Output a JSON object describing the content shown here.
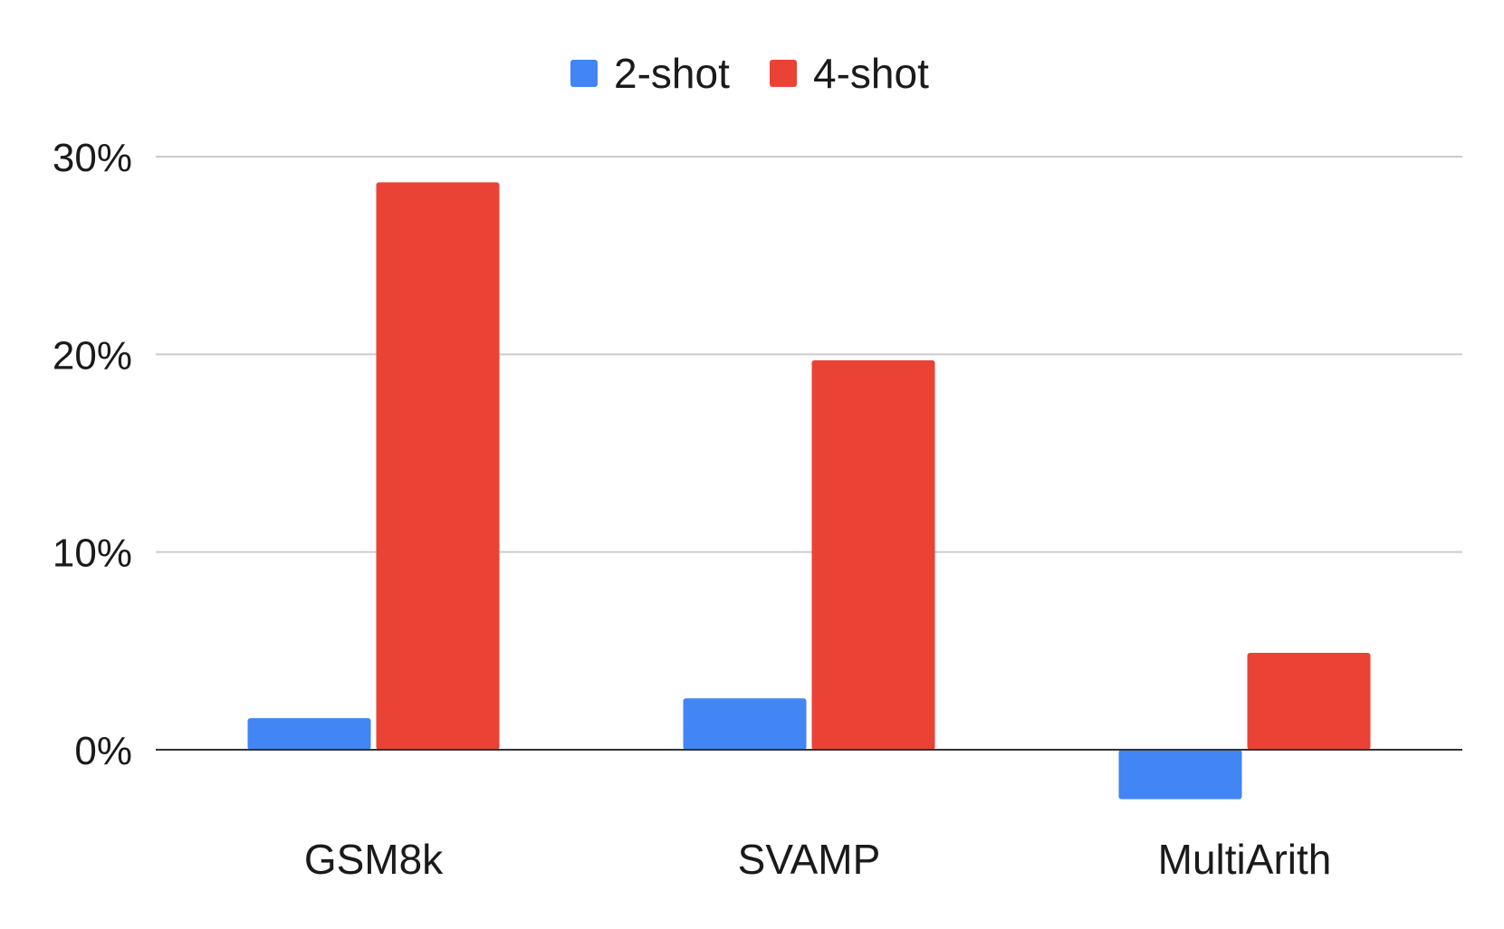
{
  "chart_data": {
    "type": "bar",
    "categories": [
      "GSM8k",
      "SVAMP",
      "MultiArith"
    ],
    "series": [
      {
        "name": "2-shot",
        "color": "#4285f4",
        "values": [
          1.6,
          2.6,
          -2.5
        ]
      },
      {
        "name": "4-shot",
        "color": "#ea4335",
        "values": [
          28.7,
          19.7,
          4.9
        ]
      }
    ],
    "ylim": [
      -3,
      30
    ],
    "yticks": [
      {
        "value": 0,
        "label": "0%"
      },
      {
        "value": 10,
        "label": "10%"
      },
      {
        "value": 20,
        "label": "20%"
      },
      {
        "value": 30,
        "label": "30%"
      }
    ],
    "title": "",
    "xlabel": "",
    "ylabel": "",
    "legend": "top-center",
    "grid": true
  }
}
